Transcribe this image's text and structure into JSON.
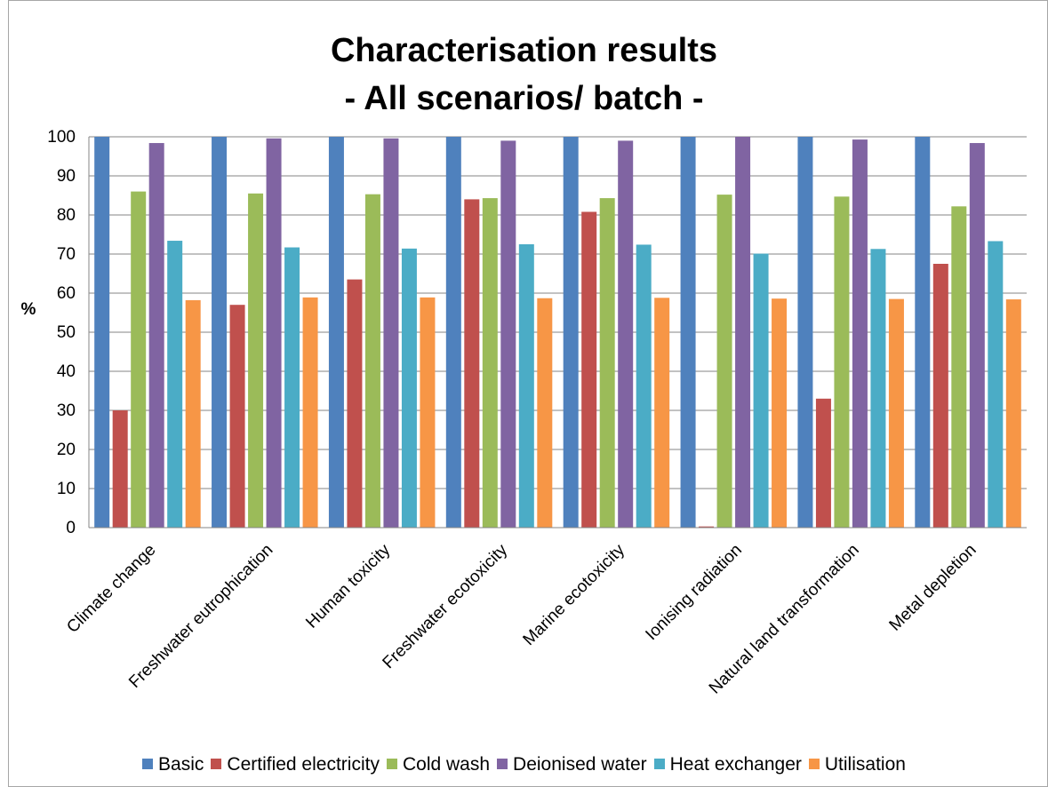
{
  "chart_data": {
    "type": "bar",
    "title": "Characterisation results",
    "subtitle": "- All scenarios/ batch -",
    "xlabel": "",
    "ylabel": "%",
    "ylim": [
      0,
      100
    ],
    "y_ticks": [
      0,
      10,
      20,
      30,
      40,
      50,
      60,
      70,
      80,
      90,
      100
    ],
    "grid": true,
    "legend_position": "bottom",
    "categories": [
      "Climate change",
      "Freshwater eutrophication",
      "Human toxicity",
      "Freshwater ecotoxicity",
      "Marine ecotoxicity",
      "Ionising radiation",
      "Natural land transformation",
      "Metal depletion"
    ],
    "series": [
      {
        "name": "Basic",
        "color": "#4f81bd",
        "values": [
          100,
          100,
          100,
          100,
          100,
          100,
          100,
          100
        ]
      },
      {
        "name": "Certified electricity",
        "color": "#c0504d",
        "values": [
          30,
          57,
          63.5,
          84,
          80.8,
          0.3,
          33,
          67.5
        ]
      },
      {
        "name": "Cold wash",
        "color": "#9bbb59",
        "values": [
          86,
          85.5,
          85.3,
          84.3,
          84.3,
          85.2,
          84.7,
          82.2
        ]
      },
      {
        "name": "Deionised water",
        "color": "#8064a2",
        "values": [
          98.4,
          99.6,
          99.6,
          99,
          99,
          100,
          99.3,
          98.4
        ]
      },
      {
        "name": "Heat exchanger",
        "color": "#4bacc6",
        "values": [
          73.4,
          71.7,
          71.4,
          72.5,
          72.4,
          70.1,
          71.3,
          73.3
        ]
      },
      {
        "name": "Utilisation",
        "color": "#f79646",
        "values": [
          58.2,
          58.9,
          58.9,
          58.7,
          58.8,
          58.6,
          58.5,
          58.4
        ]
      }
    ]
  }
}
